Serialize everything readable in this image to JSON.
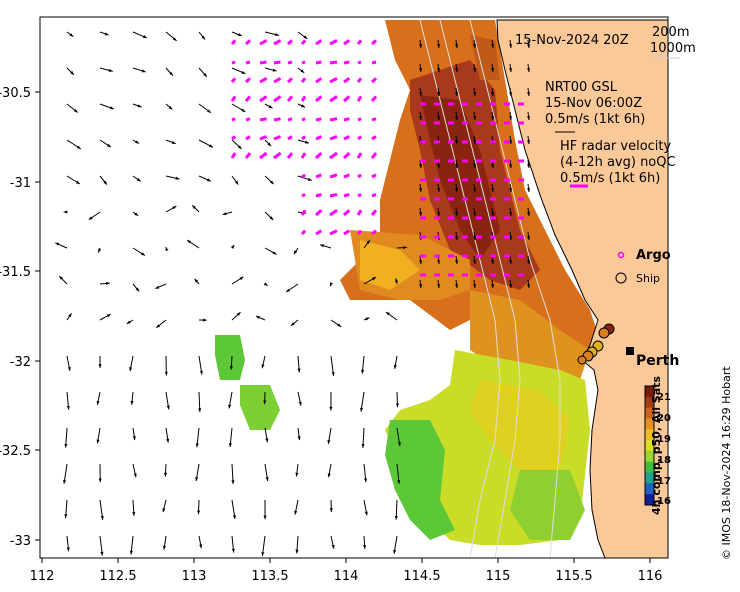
{
  "header": {
    "timestamp": "15-Nov-2024 20Z",
    "isobath_1": "200m",
    "isobath_2": "1000m"
  },
  "legend": {
    "gsl_title": "NRT00 GSL",
    "gsl_time": "15-Nov 06:00Z",
    "gsl_scale": "0.5m/s (1kt 6h)",
    "hf_title": "HF radar velocity",
    "hf_sub": "(4-12h avg) noQC",
    "hf_scale": "0.5m/s (1kt 6h)",
    "argo_label": "Argo",
    "ship_label": "Ship",
    "hf_color": "#ff00ff"
  },
  "place": {
    "city": "Perth"
  },
  "axes": {
    "x_ticks": [
      "112",
      "112.5",
      "113",
      "113.5",
      "114",
      "114.5",
      "115",
      "115.5",
      "116"
    ],
    "y_ticks": [
      "-30.5",
      "-31",
      "-31.5",
      "-32",
      "-32.5",
      "-33"
    ]
  },
  "colorbar": {
    "label": "4h comp, p50, All Sats",
    "ticks": [
      "21",
      "20",
      "19",
      "18",
      "17",
      "16"
    ],
    "colors": [
      "#7a1a0a",
      "#a63a12",
      "#d1621a",
      "#e8921e",
      "#f0c020",
      "#d8e020",
      "#9ad830",
      "#3cc040",
      "#20a090",
      "#2060c0",
      "#10209a"
    ]
  },
  "credit": "© IMOS 18-Nov-2024 16:29 Hobart",
  "map_colors": {
    "land": "#fbc898",
    "ocean": "#ffffff"
  }
}
